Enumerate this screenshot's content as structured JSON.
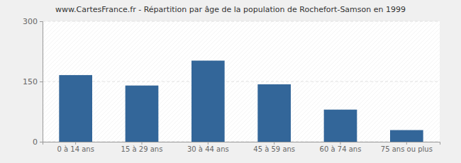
{
  "chart_data": {
    "type": "bar",
    "title": "www.CartesFrance.fr - Répartition par âge de la population de Rochefort-Samson en 1999",
    "categories": [
      "0 à 14 ans",
      "15 à 29 ans",
      "30 à 44 ans",
      "45 à 59 ans",
      "60 à 74 ans",
      "75 ans ou plus"
    ],
    "values": [
      166,
      140,
      202,
      143,
      80,
      29
    ],
    "color": "#336699",
    "ylim": [
      0,
      300
    ],
    "yticks": [
      0,
      150,
      300
    ],
    "grid": true
  }
}
